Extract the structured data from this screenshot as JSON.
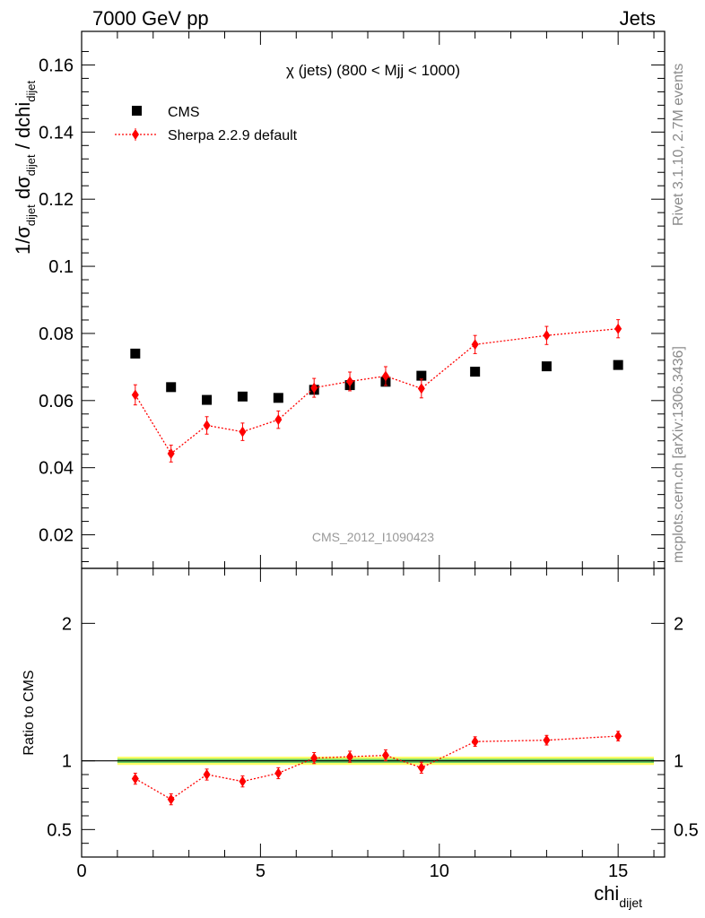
{
  "header": {
    "left": "7000 GeV pp",
    "right": "Jets"
  },
  "side_labels": {
    "rivet": "Rivet 3.1.10,  2.7M events",
    "mcplots": "mcplots.cern.ch [arXiv:1306.3436]"
  },
  "colors": {
    "data": "#000000",
    "mc": "#ff0000",
    "band_inner": "#66cc66",
    "band_outer": "#ffff66"
  },
  "chart_data": [
    {
      "type": "scatter",
      "title": "χ (jets) (800 < Mjj < 1000)",
      "watermark": "CMS_2012_I1090423",
      "xlim": [
        0,
        16.3
      ],
      "ylim": [
        0.01,
        0.17
      ],
      "yticks": [
        0.02,
        0.04,
        0.06,
        0.08,
        0.1,
        0.12,
        0.14,
        0.16
      ],
      "ytick_labels": [
        "0.02",
        "0.04",
        "0.06",
        "0.08",
        "0.1",
        "0.12",
        "0.14",
        "0.16"
      ],
      "ylabel": {
        "main": "1/σ",
        "sub1": "dijet",
        "mid": " dσ",
        "sub2": "dijet",
        "slash": " / dchi",
        "sub3": "dijet"
      },
      "legend": "top-left",
      "series": [
        {
          "name": "CMS",
          "marker": "square",
          "x": [
            1.5,
            2.5,
            3.5,
            4.5,
            5.5,
            6.5,
            7.5,
            8.5,
            9.5,
            11,
            13,
            15
          ],
          "y": [
            0.074,
            0.064,
            0.0602,
            0.0612,
            0.0608,
            0.0632,
            0.0646,
            0.0656,
            0.0674,
            0.0686,
            0.0702,
            0.0706
          ]
        },
        {
          "name": "Sherpa 2.2.9 default",
          "marker": "diamond",
          "x": [
            1.5,
            2.5,
            3.5,
            4.5,
            5.5,
            6.5,
            7.5,
            8.5,
            9.5,
            11,
            13,
            15
          ],
          "y": [
            0.0617,
            0.0442,
            0.0526,
            0.0507,
            0.0543,
            0.0638,
            0.0657,
            0.0673,
            0.0636,
            0.0767,
            0.0794,
            0.0814
          ],
          "err": [
            0.003,
            0.0025,
            0.0026,
            0.0026,
            0.0026,
            0.0028,
            0.0028,
            0.0028,
            0.0028,
            0.0027,
            0.0027,
            0.0027
          ]
        }
      ]
    },
    {
      "type": "scatter",
      "ylabel": "Ratio to CMS",
      "xlabel": {
        "main": "chi",
        "sub": "dijet"
      },
      "xlim": [
        0,
        16.3
      ],
      "ylim": [
        0.3,
        2.4
      ],
      "xticks": [
        0,
        5,
        10,
        15
      ],
      "xtick_labels": [
        "0",
        "5",
        "10",
        "15"
      ],
      "yticks": [
        0.5,
        1,
        2
      ],
      "ytick_labels": [
        "0.5",
        "1",
        "2"
      ],
      "band": {
        "x": [
          1,
          16
        ],
        "outer": [
          0.97,
          1.03
        ],
        "inner": [
          0.985,
          1.015
        ]
      },
      "series": [
        {
          "name": "Sherpa 2.2.9 default",
          "marker": "diamond",
          "x": [
            1.5,
            2.5,
            3.5,
            4.5,
            5.5,
            6.5,
            7.5,
            8.5,
            9.5,
            11,
            13,
            15
          ],
          "y": [
            0.87,
            0.72,
            0.9,
            0.85,
            0.91,
            1.02,
            1.03,
            1.04,
            0.95,
            1.14,
            1.15,
            1.18
          ],
          "err": [
            0.04,
            0.04,
            0.04,
            0.04,
            0.04,
            0.04,
            0.04,
            0.04,
            0.04,
            0.035,
            0.035,
            0.035
          ]
        }
      ]
    }
  ]
}
